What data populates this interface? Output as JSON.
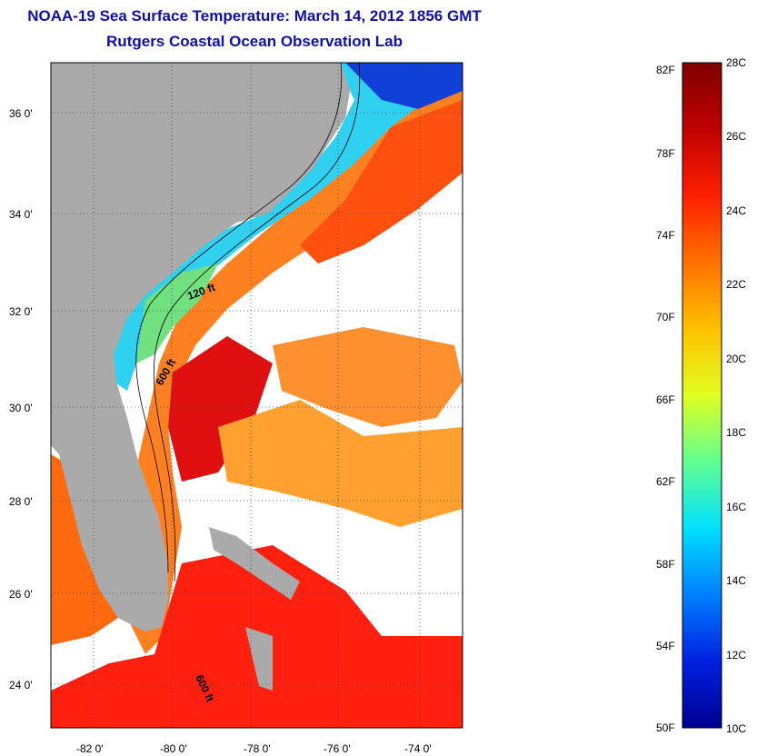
{
  "title": "NOAA-19 Sea Surface Temperature:  March 14, 2012 1856 GMT",
  "subtitle": "Rutgers Coastal Ocean Observation Lab",
  "map": {
    "lat_ticks": [
      "36 0'",
      "34 0'",
      "32 0'",
      "30 0'",
      "28 0'",
      "26 0'",
      "24 0'"
    ],
    "lon_ticks": [
      "-82 0'",
      "-80 0'",
      "-78 0'",
      "-76 0'",
      "-74 0'"
    ],
    "contours": [
      "120 ft",
      "600 ft",
      "600 ft"
    ],
    "colors": {
      "land": "#aaaaaa",
      "cloud": "#ffffff",
      "grid": "#444444"
    }
  },
  "colorbar": {
    "fahrenheit": [
      "82F",
      "78F",
      "74F",
      "70F",
      "66F",
      "62F",
      "58F",
      "54F",
      "50F"
    ],
    "celsius": [
      "28C",
      "26C",
      "24C",
      "22C",
      "20C",
      "18C",
      "16C",
      "14C",
      "12C",
      "10C"
    ],
    "gradient": [
      "#800000",
      "#c00000",
      "#ff2000",
      "#ff7000",
      "#ffc000",
      "#e0ff20",
      "#60ff90",
      "#00e0ff",
      "#0080ff",
      "#0020e0",
      "#000090"
    ]
  }
}
